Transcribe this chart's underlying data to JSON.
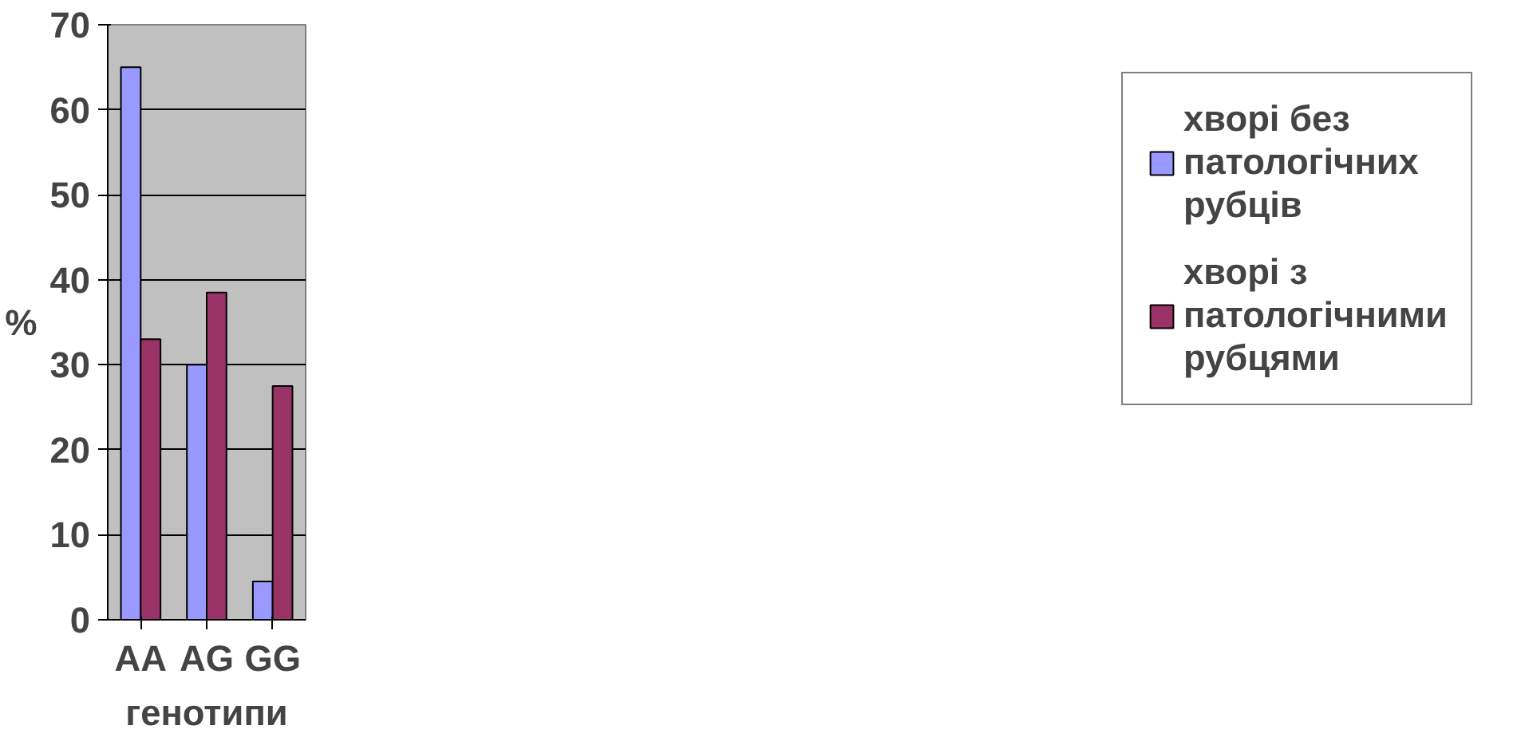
{
  "chart_data": {
    "type": "bar",
    "xlabel": "генотипи",
    "ylabel": "%",
    "categories": [
      "AA",
      "AG",
      "GG"
    ],
    "series": [
      {
        "name": "хворі без патологічних рубців",
        "color": "#9999ff",
        "values": [
          65,
          30,
          4.5
        ]
      },
      {
        "name": "хворі з патологічними рубцями",
        "color": "#993366",
        "values": [
          33,
          38.5,
          27.5
        ]
      }
    ],
    "ylim": [
      0,
      70
    ],
    "yticks": [
      0,
      10,
      20,
      30,
      40,
      50,
      60,
      70
    ],
    "grid": "y",
    "legend": "right"
  }
}
